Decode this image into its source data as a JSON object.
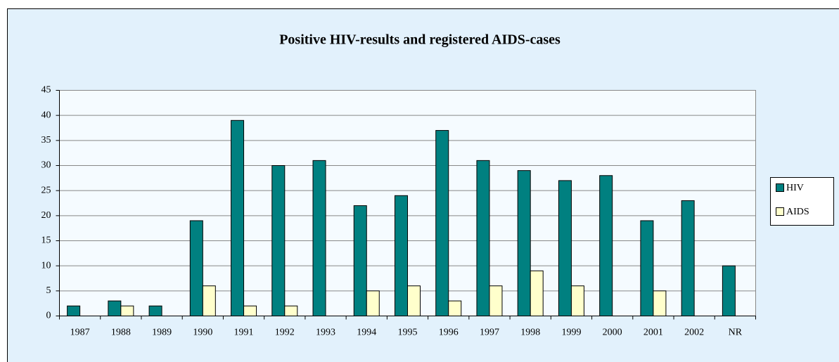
{
  "chart_data": {
    "type": "bar",
    "title": "Positive HIV-results and registered AIDS-cases",
    "categories": [
      "1987",
      "1988",
      "1989",
      "1990",
      "1991",
      "1992",
      "1993",
      "1994",
      "1995",
      "1996",
      "1997",
      "1998",
      "1999",
      "2000",
      "2001",
      "2002",
      "NR"
    ],
    "series": [
      {
        "name": "HIV",
        "color": "#008080",
        "values": [
          2,
          3,
          2,
          19,
          39,
          30,
          31,
          22,
          24,
          37,
          31,
          29,
          27,
          28,
          19,
          23,
          10
        ]
      },
      {
        "name": "AIDS",
        "color": "#ffffcc",
        "values": [
          0,
          2,
          0,
          6,
          2,
          2,
          0,
          5,
          6,
          3,
          6,
          9,
          6,
          0,
          5,
          0,
          0
        ]
      }
    ],
    "ylim": [
      0,
      45
    ],
    "yticks": [
      0,
      5,
      10,
      15,
      20,
      25,
      30,
      35,
      40,
      45
    ],
    "grid": true,
    "legend": "right"
  }
}
